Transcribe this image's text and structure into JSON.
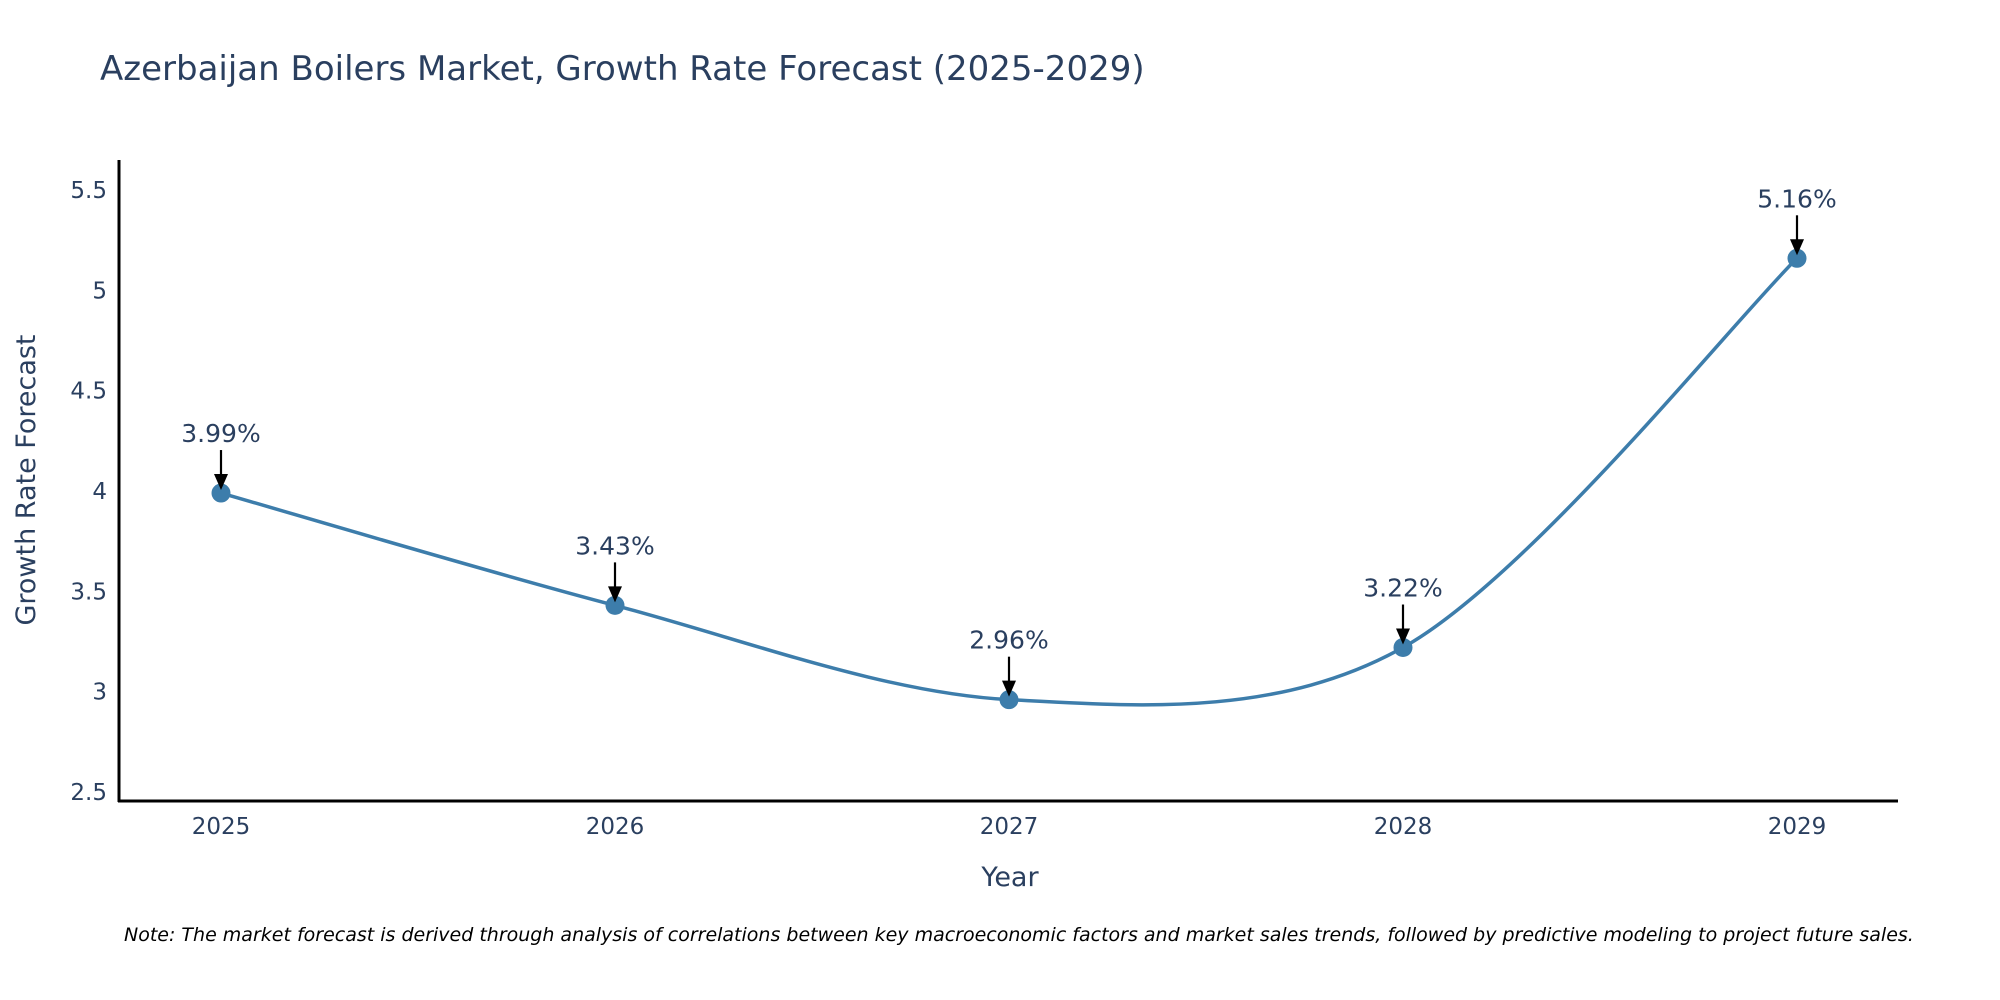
{
  "chart_data": {
    "type": "line",
    "title": "Azerbaijan Boilers Market, Growth Rate Forecast (2025-2029)",
    "xlabel": "Year",
    "ylabel": "Growth Rate Forecast",
    "categories": [
      "2025",
      "2026",
      "2027",
      "2028",
      "2029"
    ],
    "series": [
      {
        "name": "Growth Rate Forecast",
        "values": [
          3.99,
          3.43,
          2.96,
          3.22,
          5.16
        ],
        "labels": [
          "3.99%",
          "3.43%",
          "2.96%",
          "3.22%",
          "5.16%"
        ],
        "color": "#3d7dab"
      }
    ],
    "ylim": [
      2.45,
      5.65
    ],
    "yticks": [
      2.5,
      3,
      3.5,
      4,
      4.5,
      5,
      5.5
    ],
    "ytick_labels": [
      "2.5",
      "3",
      "3.5",
      "4",
      "4.5",
      "5",
      "5.5"
    ],
    "line_shape": "spline",
    "grid": false,
    "legend": false,
    "note": "Note: The market forecast is derived through analysis of correlations between key macroeconomic factors and market sales trends, followed by predictive modeling to project future sales."
  },
  "colors": {
    "title": "#2a3f5f",
    "line": "#3d7dab",
    "axis": "#000000",
    "arrow": "#000000"
  }
}
